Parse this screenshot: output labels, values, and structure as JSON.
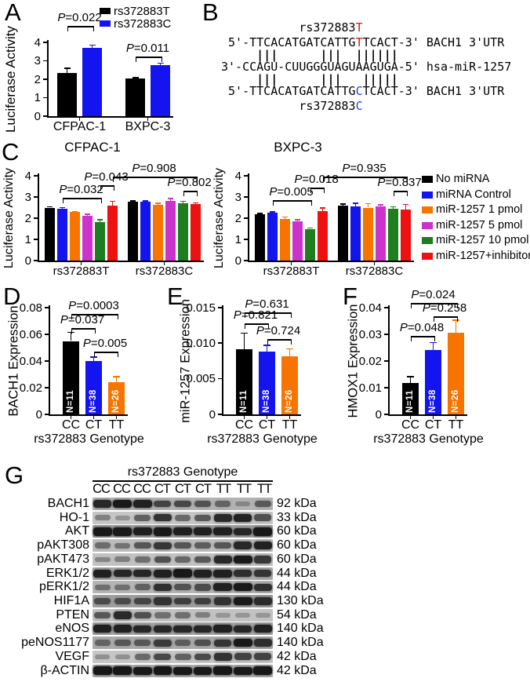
{
  "panel_letters": {
    "A": "A",
    "B": "B",
    "C": "C",
    "D": "D",
    "E": "E",
    "F": "F",
    "G": "G"
  },
  "colors": {
    "black": "#000000",
    "blue": "#1414ee",
    "orange": "#f87400",
    "magenta": "#cc33cc",
    "green": "#1e7d1e",
    "red": "#ee1111"
  },
  "panelB": {
    "allele_top": {
      "prefix": "rs372883",
      "snp": "T"
    },
    "seq_t": {
      "prefix": " 5'-TTCACATGATCATTG",
      "snp": "T",
      "suffix": "TCACT-3' BACH1 3'UTR"
    },
    "pairing_top": "     |||      |||  ||||||",
    "mirna": "3'-CCAGU-CUUGGGUAGUAAGUGA-5' hsa-miR-1257",
    "pairing_bottom": "     |||      |||   |||||",
    "seq_c": {
      "prefix": " 5'-TTCACATGATCATTG",
      "snp": "C",
      "suffix": "TCACT-3' BACH1 3'UTR"
    },
    "allele_bottom": {
      "prefix": "rs372883",
      "snp": "C"
    }
  },
  "panelC": {
    "legend": [
      {
        "color": "#000000",
        "label": "No miRNA"
      },
      {
        "color": "#1414ee",
        "label": "miRNA Control"
      },
      {
        "color": "#f87400",
        "label": "miR-1257 1 pmol"
      },
      {
        "color": "#cc33cc",
        "label": "miR-1257 5 pmol"
      },
      {
        "color": "#1e7d1e",
        "label": "miR-1257 10 pmol"
      },
      {
        "color": "#ee1111",
        "label": "miR-1257+inhibitor"
      }
    ]
  },
  "chart_data": {
    "A": {
      "type": "bar",
      "title": "",
      "ylabel": "Luciferase Activity",
      "ymax": 4,
      "yticks": [
        "0",
        "1",
        "2",
        "3",
        "4"
      ],
      "groups": [
        {
          "label": "CFPAC-1",
          "bars": [
            {
              "series": "rs372883T",
              "color": "#000000",
              "value": 2.35,
              "err": 0.28
            },
            {
              "series": "rs372883C",
              "color": "#1414ee",
              "value": 3.7,
              "err": 0.18
            }
          ]
        },
        {
          "label": "BXPC-3",
          "bars": [
            {
              "series": "rs372883T",
              "color": "#000000",
              "value": 2.05,
              "err": 0.06
            },
            {
              "series": "rs372883C",
              "color": "#1414ee",
              "value": 2.75,
              "err": 0.15
            }
          ]
        }
      ],
      "brackets": [
        {
          "label": "P=0.022",
          "from": [
            0,
            0
          ],
          "to": [
            0,
            1
          ],
          "level": 4.9
        },
        {
          "label": "P=0.011",
          "from": [
            1,
            0
          ],
          "to": [
            1,
            1
          ],
          "level": 3.25
        }
      ],
      "legend": [
        {
          "color": "#000000",
          "label": "rs372883T"
        },
        {
          "color": "#1414ee",
          "label": "rs372883C"
        }
      ]
    },
    "C1": {
      "type": "bar",
      "title": "CFPAC-1",
      "ylabel": "Luciferase Activity",
      "ymax": 4,
      "yticks": [
        "0",
        "1",
        "2",
        "3",
        "4"
      ],
      "groups": [
        {
          "label": "rs372883T",
          "bars": [
            {
              "series": "No miRNA",
              "color": "#000000",
              "value": 2.5,
              "err": 0.07
            },
            {
              "series": "miRNA Control",
              "color": "#1414ee",
              "value": 2.45,
              "err": 0.08
            },
            {
              "series": "miR-1257 1 pmol",
              "color": "#f87400",
              "value": 2.28,
              "err": 0.07
            },
            {
              "series": "miR-1257 5 pmol",
              "color": "#cc33cc",
              "value": 2.12,
              "err": 0.09
            },
            {
              "series": "miR-1257 10 pmol",
              "color": "#1e7d1e",
              "value": 1.82,
              "err": 0.13
            },
            {
              "series": "miR-1257+inhibitor",
              "color": "#ee1111",
              "value": 2.6,
              "err": 0.22
            }
          ]
        },
        {
          "label": "rs372883C",
          "bars": [
            {
              "series": "No miRNA",
              "color": "#000000",
              "value": 2.78,
              "err": 0.06
            },
            {
              "series": "miRNA Control",
              "color": "#1414ee",
              "value": 2.77,
              "err": 0.07
            },
            {
              "series": "miR-1257 1 pmol",
              "color": "#f87400",
              "value": 2.63,
              "err": 0.1
            },
            {
              "series": "miR-1257 5 pmol",
              "color": "#cc33cc",
              "value": 2.82,
              "err": 0.13
            },
            {
              "series": "miR-1257 10 pmol",
              "color": "#1e7d1e",
              "value": 2.7,
              "err": 0.12
            },
            {
              "series": "miR-1257+inhibitor",
              "color": "#ee1111",
              "value": 2.65,
              "err": 0.1
            }
          ]
        }
      ],
      "brackets": [
        {
          "label": "P=0.032",
          "from": [
            0,
            1
          ],
          "to": [
            0,
            4
          ],
          "level": 2.95
        },
        {
          "label": "P=0.043",
          "from": [
            0,
            4
          ],
          "to": [
            0,
            5
          ],
          "level": 3.55
        },
        {
          "label": "P=0.908",
          "from": [
            0,
            5
          ],
          "to": [
            1,
            5
          ],
          "level": 3.95
        },
        {
          "label": "P=0.802",
          "from": [
            1,
            4
          ],
          "to": [
            1,
            5
          ],
          "level": 3.3
        }
      ]
    },
    "C2": {
      "type": "bar",
      "title": "BXPC-3",
      "ylabel": "Luciferase Activity",
      "ymax": 4,
      "yticks": [
        "0",
        "1",
        "2",
        "3",
        "4"
      ],
      "groups": [
        {
          "label": "rs372883T",
          "bars": [
            {
              "series": "No miRNA",
              "color": "#000000",
              "value": 2.2,
              "err": 0.06
            },
            {
              "series": "miRNA Control",
              "color": "#1414ee",
              "value": 2.25,
              "err": 0.07
            },
            {
              "series": "miR-1257 1 pmol",
              "color": "#f87400",
              "value": 1.95,
              "err": 0.13
            },
            {
              "series": "miR-1257 5 pmol",
              "color": "#cc33cc",
              "value": 1.85,
              "err": 0.1
            },
            {
              "series": "miR-1257 10 pmol",
              "color": "#1e7d1e",
              "value": 1.5,
              "err": 0.07
            },
            {
              "series": "miR-1257+inhibitor",
              "color": "#ee1111",
              "value": 2.35,
              "err": 0.16
            }
          ]
        },
        {
          "label": "rs372883C",
          "bars": [
            {
              "series": "No miRNA",
              "color": "#000000",
              "value": 2.6,
              "err": 0.1
            },
            {
              "series": "miRNA Control",
              "color": "#1414ee",
              "value": 2.55,
              "err": 0.18
            },
            {
              "series": "miR-1257 1 pmol",
              "color": "#f87400",
              "value": 2.5,
              "err": 0.22
            },
            {
              "series": "miR-1257 5 pmol",
              "color": "#cc33cc",
              "value": 2.55,
              "err": 0.12
            },
            {
              "series": "miR-1257 10 pmol",
              "color": "#1e7d1e",
              "value": 2.45,
              "err": 0.12
            },
            {
              "series": "miR-1257+inhibitor",
              "color": "#ee1111",
              "value": 2.4,
              "err": 0.28
            }
          ]
        }
      ],
      "brackets": [
        {
          "label": "P=0.005",
          "from": [
            0,
            1
          ],
          "to": [
            0,
            4
          ],
          "level": 2.85
        },
        {
          "label": "P=0.018",
          "from": [
            0,
            4
          ],
          "to": [
            0,
            5
          ],
          "level": 3.45
        },
        {
          "label": "P=0.935",
          "from": [
            0,
            5
          ],
          "to": [
            1,
            5
          ],
          "level": 3.95
        },
        {
          "label": "P=0.837",
          "from": [
            1,
            4
          ],
          "to": [
            1,
            5
          ],
          "level": 3.3
        }
      ]
    },
    "D": {
      "type": "bar",
      "title": "",
      "ylabel": "BACH1 Expression",
      "xlabel": "rs372883 Genotype",
      "ymax": 0.08,
      "yticks": [
        "0",
        "0.02",
        "0.04",
        "0.06",
        "0.08"
      ],
      "groups": [
        {
          "label": "CC",
          "bars": [
            {
              "series": "CC",
              "color": "#000000",
              "value": 0.055,
              "err": 0.007,
              "n": "N=11"
            }
          ]
        },
        {
          "label": "CT",
          "bars": [
            {
              "series": "CT",
              "color": "#1414ee",
              "value": 0.0398,
              "err": 0.0035,
              "n": "N=38"
            }
          ]
        },
        {
          "label": "TT",
          "bars": [
            {
              "series": "TT",
              "color": "#f87400",
              "value": 0.0242,
              "err": 0.0045,
              "n": "N=26"
            }
          ]
        }
      ],
      "brackets": [
        {
          "label": "P=0.0003",
          "from": [
            0,
            0
          ],
          "to": [
            2,
            0
          ],
          "level": 0.0755
        },
        {
          "label": "P=0.037",
          "from": [
            0,
            0
          ],
          "to": [
            1,
            0
          ],
          "level": 0.0645
        },
        {
          "label": "P=0.005",
          "from": [
            1,
            0
          ],
          "to": [
            2,
            0
          ],
          "level": 0.047
        }
      ]
    },
    "E": {
      "type": "bar",
      "title": "",
      "ylabel": "miR-1257 Expression",
      "xlabel": "rs372883 Genotype",
      "ymax": 0.015,
      "yticks": [
        "0",
        "0.005",
        "0.010",
        "0.015"
      ],
      "groups": [
        {
          "label": "CC",
          "bars": [
            {
              "series": "CC",
              "color": "#000000",
              "value": 0.0092,
              "err": 0.0023,
              "n": "N=11"
            }
          ]
        },
        {
          "label": "CT",
          "bars": [
            {
              "series": "CT",
              "color": "#1414ee",
              "value": 0.0088,
              "err": 0.001,
              "n": "N=38"
            }
          ]
        },
        {
          "label": "TT",
          "bars": [
            {
              "series": "TT",
              "color": "#f87400",
              "value": 0.0082,
              "err": 0.0011,
              "n": "N=26"
            }
          ]
        }
      ],
      "brackets": [
        {
          "label": "P=0.631",
          "from": [
            0,
            0
          ],
          "to": [
            2,
            0
          ],
          "level": 0.0143
        },
        {
          "label": "P=0.821",
          "from": [
            0,
            0
          ],
          "to": [
            1,
            0
          ],
          "level": 0.01275
        },
        {
          "label": "P=0.724",
          "from": [
            1,
            0
          ],
          "to": [
            2,
            0
          ],
          "level": 0.0106
        }
      ]
    },
    "F": {
      "type": "bar",
      "title": "",
      "ylabel": "HMOX1 Expression",
      "xlabel": "rs372883 Genotype",
      "ymax": 0.04,
      "yticks": [
        "0",
        "0.01",
        "0.02",
        "0.03",
        "0.04"
      ],
      "groups": [
        {
          "label": "CC",
          "bars": [
            {
              "series": "CC",
              "color": "#000000",
              "value": 0.0118,
              "err": 0.0025,
              "n": "N=11"
            }
          ]
        },
        {
          "label": "CT",
          "bars": [
            {
              "series": "CT",
              "color": "#1414ee",
              "value": 0.0241,
              "err": 0.003,
              "n": "N=38"
            }
          ]
        },
        {
          "label": "TT",
          "bars": [
            {
              "series": "TT",
              "color": "#f87400",
              "value": 0.0305,
              "err": 0.005,
              "n": "N=26"
            }
          ]
        }
      ],
      "brackets": [
        {
          "label": "P=0.024",
          "from": [
            0,
            0
          ],
          "to": [
            2,
            0
          ],
          "level": 0.0418
        },
        {
          "label": "P=0.258",
          "from": [
            1,
            0
          ],
          "to": [
            2,
            0
          ],
          "level": 0.0368
        },
        {
          "label": "P=0.048",
          "from": [
            0,
            0
          ],
          "to": [
            1,
            0
          ],
          "level": 0.0294
        }
      ]
    }
  },
  "panelG": {
    "title": "rs372883 Genotype",
    "lanes": [
      "CC",
      "CC",
      "CC",
      "CT",
      "CT",
      "CT",
      "TT",
      "TT",
      "TT"
    ],
    "rows": [
      {
        "protein": "BACH1",
        "kda": "92 kDa",
        "bg": "#b3b3b3",
        "bands": [
          0.85,
          0.95,
          0.9,
          0.65,
          0.62,
          0.55,
          0.42,
          0.18,
          0.5
        ]
      },
      {
        "protein": "HO-1",
        "kda": "33 kDa",
        "bg": "#c6c6c6",
        "bands": [
          0.3,
          0.18,
          0.5,
          0.8,
          0.45,
          0.55,
          0.85,
          0.9,
          0.6
        ]
      },
      {
        "protein": "AKT",
        "kda": "60 kDa",
        "bg": "#a0a0a0",
        "bands": [
          0.95,
          0.95,
          0.9,
          0.95,
          0.9,
          0.9,
          0.9,
          0.85,
          0.95
        ]
      },
      {
        "protein": "pAKT308",
        "kda": "60 kDa",
        "bg": "#bdbdbd",
        "bands": [
          0.4,
          0.35,
          0.55,
          0.75,
          0.55,
          0.5,
          0.55,
          0.85,
          0.9
        ]
      },
      {
        "protein": "pAKT473",
        "kda": "60 kDa",
        "bg": "#c2c2c2",
        "bands": [
          0.25,
          0.3,
          0.4,
          0.6,
          0.45,
          0.55,
          0.85,
          0.95,
          0.75
        ]
      },
      {
        "protein": "ERK1/2",
        "kda": "44 kDa",
        "bg": "#ababab",
        "bands": [
          0.9,
          0.85,
          0.85,
          0.9,
          0.95,
          0.9,
          0.9,
          0.8,
          0.75
        ]
      },
      {
        "protein": "pERK1/2",
        "kda": "44 kDa",
        "bg": "#b5b5b5",
        "bands": [
          0.35,
          0.35,
          0.45,
          0.8,
          0.55,
          0.6,
          0.9,
          0.95,
          0.8
        ]
      },
      {
        "protein": "HIF1A",
        "kda": "130 kDa",
        "bg": "#9e9e9e",
        "bands": [
          0.55,
          0.55,
          0.6,
          0.75,
          0.65,
          0.65,
          0.75,
          0.95,
          0.8
        ]
      },
      {
        "protein": "PTEN",
        "kda": "54 kDa",
        "bg": "#c2c2c2",
        "bands": [
          0.55,
          0.85,
          0.6,
          0.4,
          0.4,
          0.3,
          0.15,
          0.15,
          0.15
        ]
      },
      {
        "protein": "eNOS",
        "kda": "140 kDa",
        "bg": "#a5a5a5",
        "bands": [
          0.9,
          0.9,
          0.85,
          0.85,
          0.85,
          0.85,
          0.9,
          0.85,
          0.9
        ]
      },
      {
        "protein": "peNOS1177",
        "kda": "140 kDa",
        "bg": "#ababab",
        "bands": [
          0.4,
          0.5,
          0.5,
          0.7,
          0.45,
          0.55,
          0.75,
          0.95,
          0.8
        ]
      },
      {
        "protein": "VEGF",
        "kda": "42 kDa",
        "bg": "#c6c6c6",
        "bands": [
          0.2,
          0.2,
          0.45,
          0.65,
          0.5,
          0.65,
          0.8,
          0.7,
          0.7
        ]
      },
      {
        "protein": "β-ACTIN",
        "kda": "42 kDa",
        "bg": "#b0b0b0",
        "bands": [
          0.97,
          0.97,
          0.95,
          0.97,
          0.95,
          0.95,
          0.97,
          0.95,
          0.97
        ]
      }
    ]
  }
}
